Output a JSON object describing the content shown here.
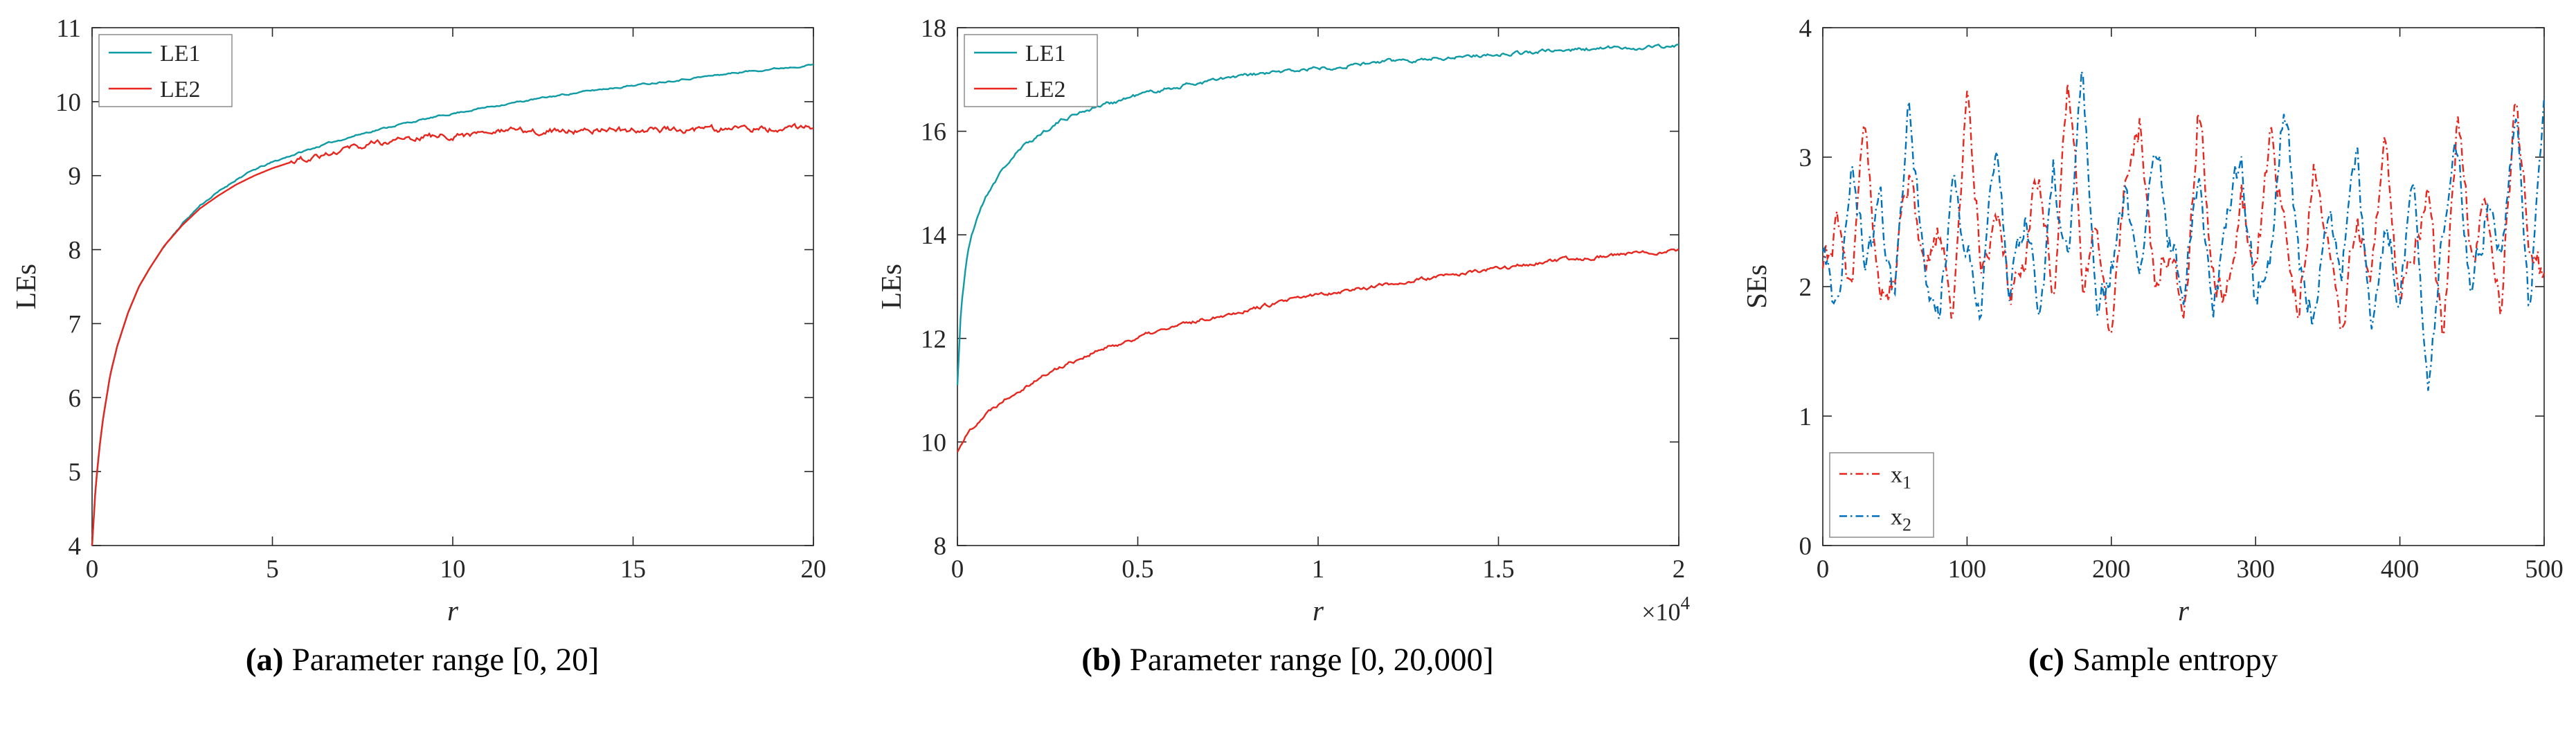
{
  "page": {
    "background": "#ffffff"
  },
  "colors": {
    "le1_teal": "#0f9ba5",
    "le2_red": "#e8261d",
    "x1_red": "#e8261d",
    "x2_blue": "#0072bd",
    "axis": "#262626",
    "legend_border": "#8c8c8c"
  },
  "captions": [
    {
      "label": "(a)",
      "text": "Parameter range [0, 20]"
    },
    {
      "label": "(b)",
      "text": "Parameter range [0, 20,000]"
    },
    {
      "label": "(c)",
      "text": "Sample entropy"
    }
  ],
  "chart_data": [
    {
      "type": "line",
      "title": "",
      "xlabel": "r",
      "ylabel": "LEs",
      "xlim": [
        0,
        20
      ],
      "ylim": [
        4,
        11
      ],
      "xticks": [
        0,
        5,
        10,
        15,
        20
      ],
      "xtick_labels": [
        "0",
        "5",
        "10",
        "15",
        "20"
      ],
      "yticks": [
        4,
        5,
        6,
        7,
        8,
        9,
        10,
        11
      ],
      "ytick_labels": [
        "4",
        "5",
        "6",
        "7",
        "8",
        "9",
        "10",
        "11"
      ],
      "grid": false,
      "legend": {
        "position": "top-left",
        "width": 192,
        "height": 104,
        "entries": [
          {
            "text": "LE1"
          },
          {
            "text": "LE2"
          }
        ]
      },
      "series": [
        {
          "name": "LE1",
          "color": "le1_teal",
          "style": "solid",
          "seed": 11,
          "noise": 0.012,
          "noise_start": 2,
          "x": [
            0,
            0.1,
            0.2,
            0.3,
            0.5,
            0.7,
            1,
            1.3,
            1.6,
            2,
            2.5,
            3,
            3.5,
            4,
            4.5,
            5,
            5.5,
            6,
            6.5,
            7,
            7.5,
            8,
            8.5,
            9,
            9.5,
            10,
            11,
            12,
            13,
            14,
            15,
            16,
            17,
            18,
            19,
            20
          ],
          "y": [
            4.0,
            4.8,
            5.3,
            5.7,
            6.3,
            6.7,
            7.15,
            7.5,
            7.75,
            8.05,
            8.35,
            8.6,
            8.78,
            8.95,
            9.08,
            9.18,
            9.27,
            9.35,
            9.43,
            9.5,
            9.57,
            9.63,
            9.69,
            9.74,
            9.79,
            9.84,
            9.93,
            10.01,
            10.09,
            10.16,
            10.22,
            10.28,
            10.34,
            10.4,
            10.45,
            10.5
          ]
        },
        {
          "name": "LE2",
          "color": "le2_red",
          "style": "solid",
          "seed": 12,
          "noise": 0.045,
          "noise_start": 5.5,
          "x": [
            0,
            0.1,
            0.2,
            0.3,
            0.5,
            0.7,
            1,
            1.3,
            1.6,
            2,
            2.5,
            3,
            3.5,
            4,
            4.5,
            5,
            5.5,
            6,
            6.5,
            7,
            7.5,
            8,
            8.5,
            9,
            9.5,
            10,
            11,
            12,
            13,
            14,
            15,
            16,
            17,
            18,
            19,
            20
          ],
          "y": [
            4.0,
            4.8,
            5.3,
            5.7,
            6.3,
            6.7,
            7.15,
            7.5,
            7.75,
            8.05,
            8.33,
            8.56,
            8.73,
            8.88,
            9.0,
            9.1,
            9.18,
            9.25,
            9.31,
            9.37,
            9.41,
            9.45,
            9.48,
            9.51,
            9.53,
            9.55,
            9.58,
            9.6,
            9.61,
            9.62,
            9.61,
            9.63,
            9.62,
            9.64,
            9.63,
            9.65
          ]
        }
      ]
    },
    {
      "type": "line",
      "title": "",
      "xlabel": "r",
      "ylabel": "LEs",
      "x_scale_note": {
        "base": "×10",
        "sup": "4"
      },
      "xlim": [
        0,
        20000
      ],
      "ylim": [
        8,
        18
      ],
      "xticks": [
        0,
        5000,
        10000,
        15000,
        20000
      ],
      "xtick_labels": [
        "0",
        "0.5",
        "1",
        "1.5",
        "2"
      ],
      "yticks": [
        8,
        10,
        12,
        14,
        16,
        18
      ],
      "ytick_labels": [
        "8",
        "10",
        "12",
        "14",
        "16",
        "18"
      ],
      "grid": false,
      "legend": {
        "position": "top-left",
        "width": 192,
        "height": 104,
        "entries": [
          {
            "text": "LE1"
          },
          {
            "text": "LE2"
          }
        ]
      },
      "series": [
        {
          "name": "LE1",
          "color": "le1_teal",
          "style": "solid",
          "seed": 21,
          "noise": 0.04,
          "noise_start": 0,
          "x": [
            0,
            100,
            200,
            300,
            400,
            600,
            800,
            1000,
            1300,
            1600,
            2000,
            2500,
            3000,
            3500,
            4000,
            5000,
            6000,
            7000,
            8000,
            9000,
            10000,
            11000,
            12000,
            13000,
            14000,
            15000,
            16000,
            17000,
            18000,
            19000,
            20000
          ],
          "y": [
            11.1,
            12.6,
            13.2,
            13.7,
            14.0,
            14.45,
            14.75,
            15.0,
            15.3,
            15.55,
            15.8,
            16.05,
            16.25,
            16.4,
            16.5,
            16.7,
            16.85,
            16.97,
            17.07,
            17.15,
            17.22,
            17.29,
            17.35,
            17.4,
            17.45,
            17.49,
            17.53,
            17.57,
            17.6,
            17.62,
            17.65
          ]
        },
        {
          "name": "LE2",
          "color": "le2_red",
          "style": "solid",
          "seed": 22,
          "noise": 0.04,
          "noise_start": 0,
          "x": [
            0,
            100,
            200,
            300,
            400,
            600,
            800,
            1000,
            1300,
            1600,
            2000,
            2500,
            3000,
            3500,
            4000,
            5000,
            6000,
            7000,
            8000,
            9000,
            10000,
            11000,
            12000,
            13000,
            14000,
            15000,
            16000,
            17000,
            18000,
            19000,
            20000
          ],
          "y": [
            9.8,
            9.97,
            10.08,
            10.18,
            10.27,
            10.42,
            10.55,
            10.67,
            10.83,
            10.97,
            11.13,
            11.32,
            11.5,
            11.65,
            11.78,
            12.02,
            12.22,
            12.4,
            12.55,
            12.7,
            12.85,
            12.95,
            13.05,
            13.15,
            13.25,
            13.35,
            13.45,
            13.52,
            13.6,
            13.65,
            13.72
          ]
        }
      ]
    },
    {
      "type": "line",
      "title": "",
      "xlabel": "r",
      "ylabel": "SEs",
      "xlim": [
        0,
        500
      ],
      "ylim": [
        0,
        4
      ],
      "xticks": [
        0,
        100,
        200,
        300,
        400,
        500
      ],
      "xtick_labels": [
        "0",
        "100",
        "200",
        "300",
        "400",
        "500"
      ],
      "yticks": [
        0,
        1,
        2,
        3,
        4
      ],
      "ytick_labels": [
        "0",
        "1",
        "2",
        "3",
        "4"
      ],
      "grid": false,
      "legend": {
        "position": "bottom-left",
        "width": 150,
        "height": 122,
        "entries": [
          {
            "text": "x",
            "sub": "1"
          },
          {
            "text": "x",
            "sub": "2"
          }
        ]
      },
      "series": [
        {
          "name": "x1",
          "color": "x1_red",
          "style": "dashdot",
          "seed": 31,
          "noise": 0.16,
          "x_start": 0,
          "x_step": 10,
          "values": [
            2.1,
            2.5,
            1.9,
            3.3,
            1.7,
            2.2,
            2.8,
            2.0,
            2.4,
            1.8,
            3.5,
            2.2,
            2.6,
            1.9,
            2.3,
            3.0,
            1.8,
            3.7,
            2.1,
            2.5,
            1.7,
            2.9,
            3.3,
            2.0,
            2.4,
            1.6,
            3.4,
            2.2,
            1.9,
            2.7,
            2.1,
            3.2,
            2.5,
            1.8,
            3.0,
            2.3,
            1.7,
            2.6,
            2.0,
            3.1,
            1.9,
            2.4,
            2.8,
            1.6,
            3.3,
            2.1,
            2.7,
            1.9,
            3.5,
            2.3,
            2.0
          ]
        },
        {
          "name": "x2",
          "color": "x2_blue",
          "style": "dashdot",
          "seed": 32,
          "noise": 0.16,
          "x_start": 0,
          "x_step": 10,
          "values": [
            2.3,
            1.8,
            3.0,
            2.1,
            2.6,
            1.9,
            3.4,
            2.2,
            1.7,
            2.8,
            2.4,
            1.9,
            3.1,
            2.0,
            2.5,
            1.8,
            2.9,
            2.3,
            3.6,
            1.9,
            2.2,
            2.7,
            1.8,
            3.2,
            2.4,
            2.0,
            2.9,
            1.7,
            2.5,
            3.0,
            1.9,
            2.3,
            3.5,
            2.1,
            1.8,
            2.6,
            2.2,
            3.1,
            1.6,
            2.4,
            2.0,
            2.8,
            1.2,
            2.5,
            3.0,
            1.9,
            2.6,
            2.2,
            3.4,
            1.8,
            3.6
          ]
        }
      ]
    }
  ]
}
